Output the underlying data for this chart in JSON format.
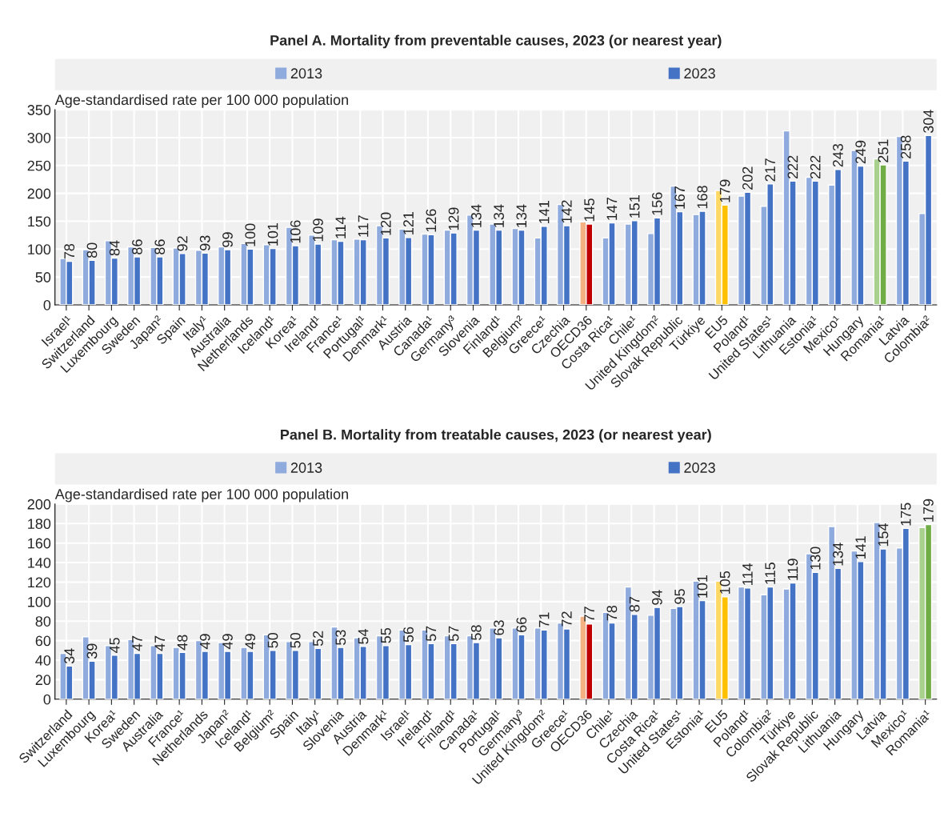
{
  "chart_data": [
    {
      "type": "bar",
      "title": "Panel A. Mortality from preventable causes, 2023 (or nearest year)",
      "ylabel": "Age-standardised rate per 100 000 population",
      "categories": [
        "Israel¹",
        "Switzerland",
        "Luxembourg",
        "Sweden",
        "Japan²",
        "Spain",
        "Italy¹",
        "Australia",
        "Netherlands",
        "Iceland¹",
        "Korea¹",
        "Ireland¹",
        "France¹",
        "Portugal¹",
        "Denmark¹",
        "Austria",
        "Canada¹",
        "Germany³",
        "Slovenia",
        "Finland¹",
        "Belgium²",
        "Greece¹",
        "Czechia",
        "OECD36",
        "Costa Rica¹",
        "Chile¹",
        "United Kingdom²",
        "Slovak Republic",
        "Türkiye",
        "EU5",
        "Poland¹",
        "United States¹",
        "Lithuania",
        "Estonia¹",
        "Mexico¹",
        "Hungary",
        "Romania¹",
        "Latvia",
        "Colombia²"
      ],
      "series": [
        {
          "name": "2013",
          "color": "#8faadc",
          "colors": [
            "#8faadc",
            "#8faadc",
            "#8faadc",
            "#8faadc",
            "#8faadc",
            "#8faadc",
            "#8faadc",
            "#8faadc",
            "#8faadc",
            "#8faadc",
            "#8faadc",
            "#8faadc",
            "#8faadc",
            "#8faadc",
            "#8faadc",
            "#8faadc",
            "#8faadc",
            "#8faadc",
            "#8faadc",
            "#8faadc",
            "#8faadc",
            "#8faadc",
            "#8faadc",
            "#f4b183",
            "#8faadc",
            "#8faadc",
            "#8faadc",
            "#8faadc",
            "#8faadc",
            "#ffd966",
            "#8faadc",
            "#8faadc",
            "#8faadc",
            "#8faadc",
            "#8faadc",
            "#8faadc",
            "#a9d18e",
            "#8faadc",
            "#8faadc"
          ],
          "values": [
            83,
            99,
            115,
            104,
            103,
            102,
            98,
            104,
            110,
            108,
            139,
            125,
            117,
            118,
            142,
            136,
            127,
            134,
            161,
            145,
            137,
            120,
            180,
            149,
            120,
            145,
            128,
            213,
            162,
            205,
            195,
            177,
            312,
            229,
            215,
            277,
            262,
            302,
            164
          ]
        },
        {
          "name": "2023",
          "color": "#4472c4",
          "colors": [
            "#4472c4",
            "#4472c4",
            "#4472c4",
            "#4472c4",
            "#4472c4",
            "#4472c4",
            "#4472c4",
            "#4472c4",
            "#4472c4",
            "#4472c4",
            "#4472c4",
            "#4472c4",
            "#4472c4",
            "#4472c4",
            "#4472c4",
            "#4472c4",
            "#4472c4",
            "#4472c4",
            "#4472c4",
            "#4472c4",
            "#4472c4",
            "#4472c4",
            "#4472c4",
            "#c00000",
            "#4472c4",
            "#4472c4",
            "#4472c4",
            "#4472c4",
            "#4472c4",
            "#ffc000",
            "#4472c4",
            "#4472c4",
            "#4472c4",
            "#4472c4",
            "#4472c4",
            "#4472c4",
            "#70ad47",
            "#4472c4",
            "#4472c4"
          ],
          "values": [
            78,
            80,
            84,
            86,
            86,
            92,
            93,
            99,
            100,
            101,
            106,
            109,
            114,
            117,
            120,
            121,
            126,
            129,
            134,
            134,
            134,
            141,
            142,
            145,
            147,
            151,
            156,
            167,
            168,
            179,
            202,
            217,
            222,
            222,
            243,
            249,
            251,
            258,
            304
          ],
          "value_labels": [
            "78",
            "80",
            "84",
            "86",
            "86",
            "92",
            "93",
            "99",
            "100",
            "101",
            "106",
            "109",
            "114",
            "117",
            "120",
            "121",
            "126",
            "129",
            "134",
            "134",
            "134",
            "141",
            "142",
            "145",
            "147",
            "151",
            "156",
            "167",
            "168",
            "179",
            "202",
            "217",
            "222",
            "222",
            "243",
            "249",
            "251",
            "258",
            "304"
          ]
        }
      ],
      "ylim": [
        0,
        350
      ],
      "yticks": [
        0,
        50,
        100,
        150,
        200,
        250,
        300,
        350
      ],
      "grid": true,
      "legend": "top"
    },
    {
      "type": "bar",
      "title": "Panel B. Mortality from treatable causes, 2023 (or nearest year)",
      "ylabel": "Age-standardised rate per 100 000 population",
      "categories": [
        "Switzerland",
        "Luxembourg",
        "Korea¹",
        "Sweden",
        "Australia",
        "France¹",
        "Netherlands",
        "Japan²",
        "Iceland¹",
        "Belgium²",
        "Spain",
        "Italy¹",
        "Slovenia",
        "Austria",
        "Denmark¹",
        "Israel¹",
        "Ireland¹",
        "Finland¹",
        "Canada¹",
        "Portugal¹",
        "Germany³",
        "United Kingdom²",
        "Greece¹",
        "OECD36",
        "Chile¹",
        "Czechia",
        "Costa Rica¹",
        "United States¹",
        "Estonia¹",
        "EU5",
        "Poland¹",
        "Colombia²",
        "Türkiye",
        "Slovak Republic",
        "Lithuania",
        "Hungary",
        "Latvia",
        "Mexico¹",
        "Romania¹"
      ],
      "series": [
        {
          "name": "2013",
          "color": "#8faadc",
          "colors": [
            "#8faadc",
            "#8faadc",
            "#8faadc",
            "#8faadc",
            "#8faadc",
            "#8faadc",
            "#8faadc",
            "#8faadc",
            "#8faadc",
            "#8faadc",
            "#8faadc",
            "#8faadc",
            "#8faadc",
            "#8faadc",
            "#8faadc",
            "#8faadc",
            "#8faadc",
            "#8faadc",
            "#8faadc",
            "#8faadc",
            "#8faadc",
            "#8faadc",
            "#8faadc",
            "#f4b183",
            "#8faadc",
            "#8faadc",
            "#8faadc",
            "#8faadc",
            "#8faadc",
            "#ffd966",
            "#8faadc",
            "#8faadc",
            "#8faadc",
            "#8faadc",
            "#8faadc",
            "#8faadc",
            "#8faadc",
            "#8faadc",
            "#a9d18e"
          ],
          "values": [
            47,
            64,
            55,
            61,
            55,
            53,
            60,
            58,
            53,
            66,
            59,
            59,
            74,
            63,
            65,
            71,
            71,
            65,
            65,
            73,
            73,
            73,
            78,
            85,
            89,
            115,
            86,
            93,
            121,
            121,
            115,
            107,
            113,
            149,
            177,
            152,
            181,
            155,
            176
          ]
        },
        {
          "name": "2023",
          "color": "#4472c4",
          "colors": [
            "#4472c4",
            "#4472c4",
            "#4472c4",
            "#4472c4",
            "#4472c4",
            "#4472c4",
            "#4472c4",
            "#4472c4",
            "#4472c4",
            "#4472c4",
            "#4472c4",
            "#4472c4",
            "#4472c4",
            "#4472c4",
            "#4472c4",
            "#4472c4",
            "#4472c4",
            "#4472c4",
            "#4472c4",
            "#4472c4",
            "#4472c4",
            "#4472c4",
            "#4472c4",
            "#c00000",
            "#4472c4",
            "#4472c4",
            "#4472c4",
            "#4472c4",
            "#4472c4",
            "#ffc000",
            "#4472c4",
            "#4472c4",
            "#4472c4",
            "#4472c4",
            "#4472c4",
            "#4472c4",
            "#4472c4",
            "#4472c4",
            "#70ad47"
          ],
          "values": [
            34,
            39,
            45,
            47,
            47,
            48,
            49,
            49,
            49,
            50,
            50,
            52,
            53,
            54,
            55,
            56,
            57,
            57,
            58,
            63,
            66,
            71,
            72,
            77,
            78,
            87,
            94,
            95,
            101,
            105,
            114,
            115,
            119,
            130,
            134,
            141,
            154,
            175,
            179
          ],
          "value_labels": [
            "34",
            "39",
            "45",
            "47",
            "47",
            "48",
            "49",
            "49",
            "49",
            "50",
            "50",
            "52",
            "53",
            "54",
            "55",
            "56",
            "57",
            "57",
            "58",
            "63",
            "66",
            "71",
            "72",
            "77",
            "78",
            "87",
            "94",
            "95",
            "101",
            "105",
            "114",
            "115",
            "119",
            "130",
            "134",
            "141",
            "154",
            "175",
            "179"
          ]
        }
      ],
      "ylim": [
        0,
        200
      ],
      "yticks": [
        0,
        20,
        40,
        60,
        80,
        100,
        120,
        140,
        160,
        180,
        200
      ],
      "grid": true,
      "legend": "top"
    }
  ]
}
